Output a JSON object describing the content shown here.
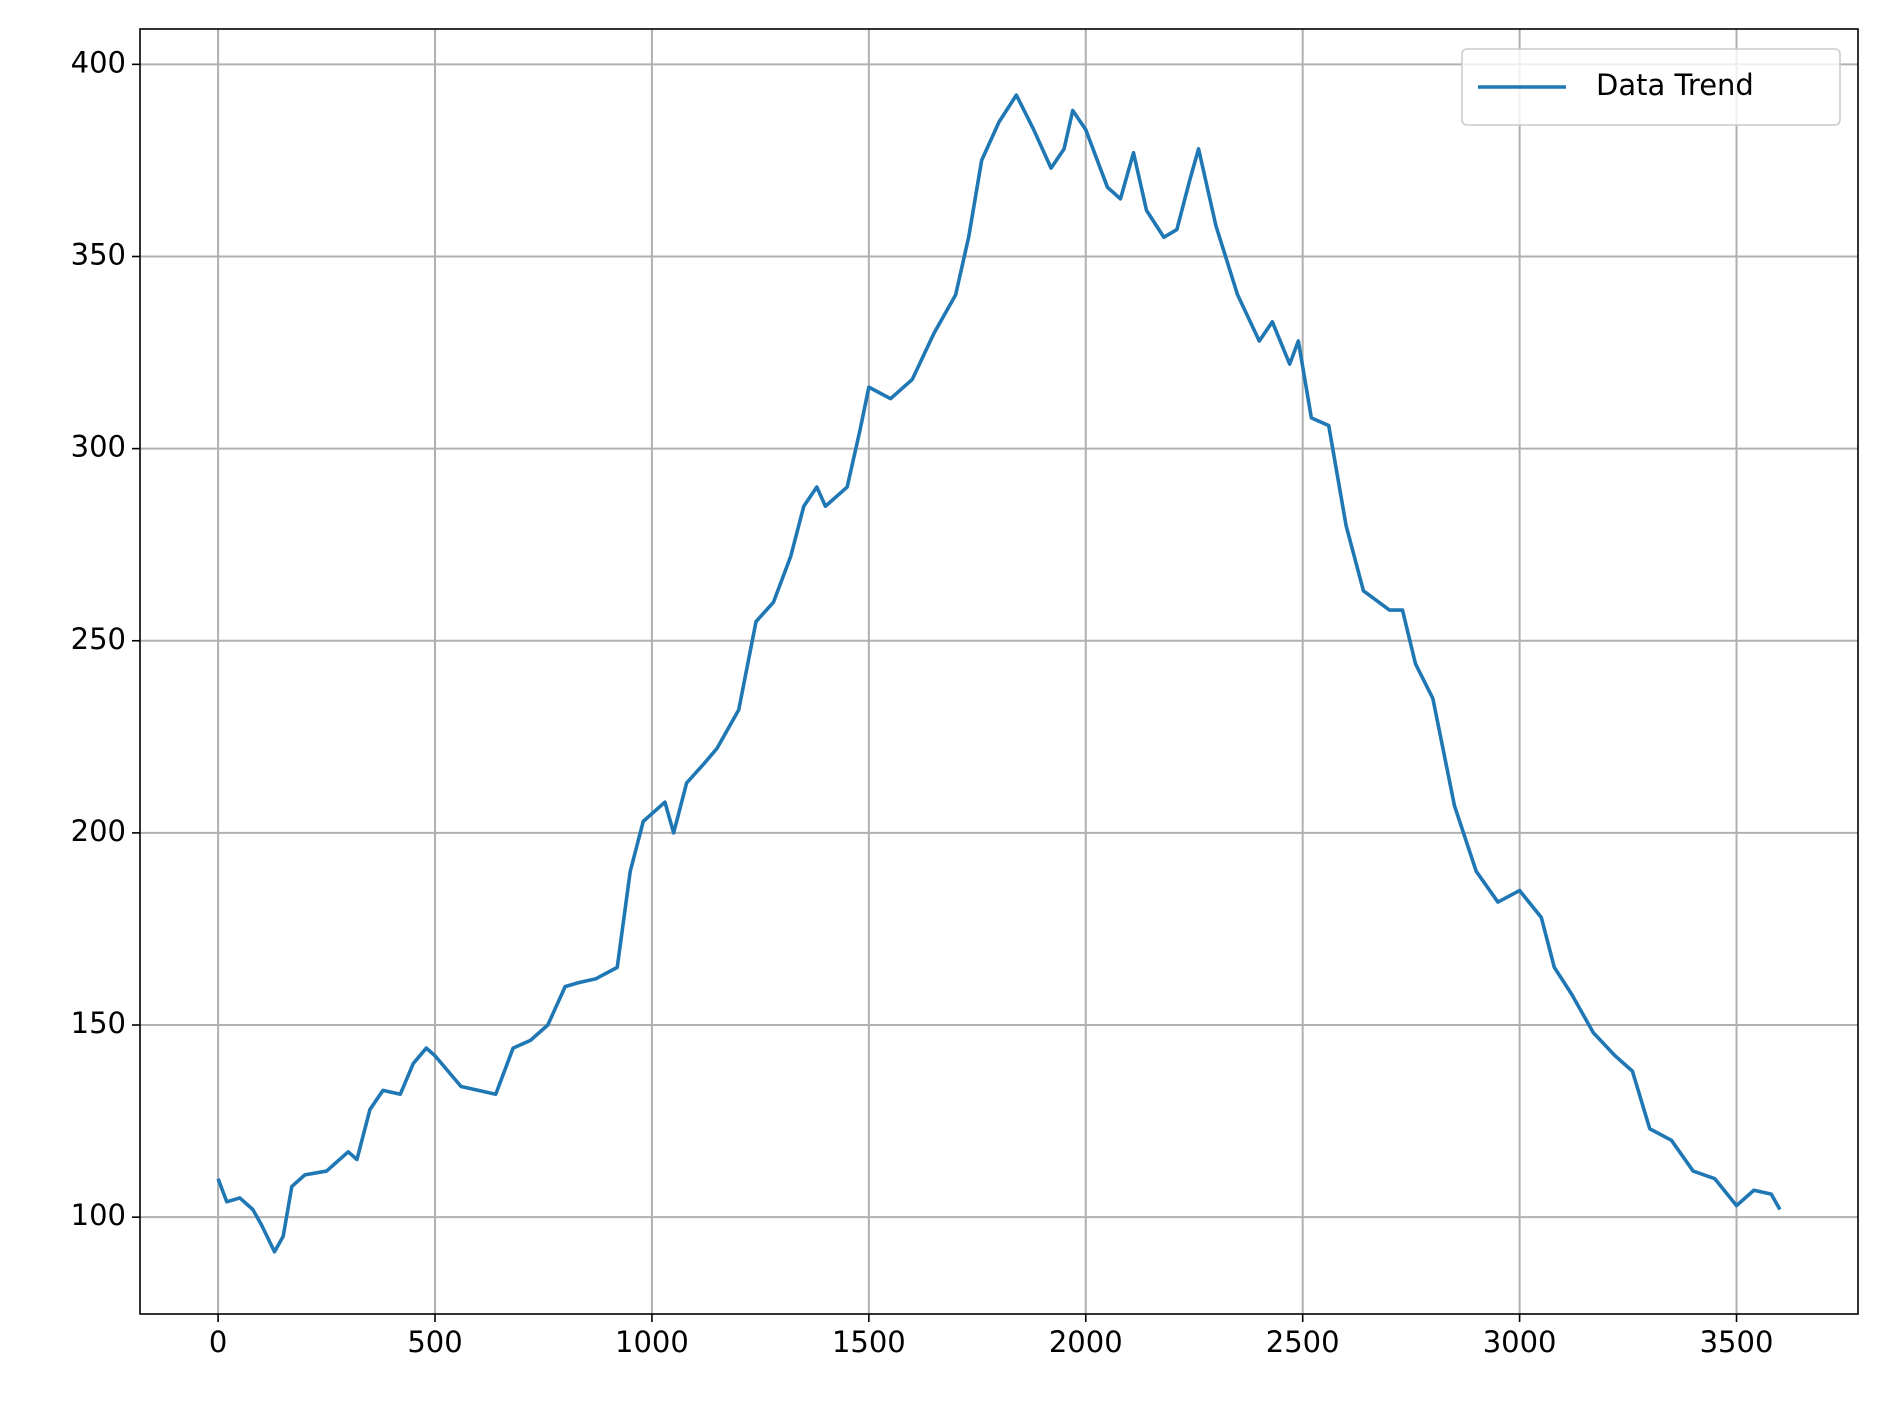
{
  "chart_data": {
    "type": "line",
    "grid": true,
    "legend": "upper right",
    "xlim": [
      -180,
      3780
    ],
    "ylim": [
      74.8,
      409.2
    ],
    "xticks": [
      0,
      500,
      1000,
      1500,
      2000,
      2500,
      3000,
      3500
    ],
    "yticks": [
      100,
      150,
      200,
      250,
      300,
      350,
      400
    ],
    "x": [
      0,
      20,
      50,
      80,
      100,
      130,
      150,
      170,
      200,
      250,
      300,
      320,
      350,
      380,
      420,
      450,
      480,
      500,
      530,
      560,
      600,
      640,
      680,
      720,
      760,
      800,
      830,
      870,
      920,
      950,
      980,
      1000,
      1030,
      1050,
      1080,
      1120,
      1150,
      1200,
      1240,
      1280,
      1320,
      1350,
      1380,
      1400,
      1450,
      1480,
      1500,
      1550,
      1600,
      1650,
      1700,
      1730,
      1760,
      1800,
      1840,
      1880,
      1920,
      1950,
      1970,
      2000,
      2050,
      2080,
      2110,
      2140,
      2180,
      2210,
      2240,
      2260,
      2300,
      2350,
      2400,
      2430,
      2470,
      2490,
      2520,
      2560,
      2600,
      2640,
      2700,
      2730,
      2760,
      2800,
      2850,
      2900,
      2950,
      3000,
      3050,
      3080,
      3120,
      3170,
      3220,
      3260,
      3300,
      3350,
      3400,
      3450,
      3500,
      3540,
      3580,
      3600
    ],
    "series": [
      {
        "name": "Data Trend",
        "color": "#1f77b4",
        "values": [
          110,
          104,
          105,
          102,
          98,
          91,
          95,
          108,
          111,
          112,
          117,
          115,
          128,
          133,
          132,
          140,
          144,
          142,
          138,
          134,
          133,
          132,
          144,
          146,
          150,
          160,
          161,
          162,
          165,
          190,
          203,
          205,
          208,
          200,
          213,
          218,
          222,
          232,
          255,
          260,
          272,
          285,
          290,
          285,
          290,
          305,
          316,
          313,
          318,
          330,
          340,
          355,
          375,
          385,
          392,
          383,
          373,
          378,
          388,
          383,
          368,
          365,
          377,
          362,
          355,
          357,
          370,
          378,
          358,
          340,
          328,
          333,
          322,
          328,
          308,
          306,
          280,
          263,
          258,
          258,
          244,
          235,
          207,
          190,
          182,
          185,
          178,
          165,
          158,
          148,
          142,
          138,
          123,
          120,
          112,
          110,
          103,
          107,
          106,
          102
        ]
      }
    ]
  }
}
